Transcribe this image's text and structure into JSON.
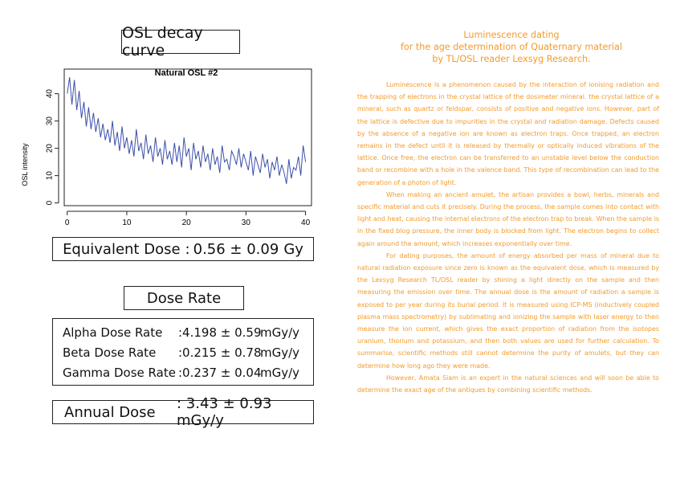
{
  "left": {
    "osl_title": "OSL decay curve",
    "equivalent_dose": {
      "label": "Equivalent Dose",
      "sep": ":",
      "value": "0.56 ± 0.09",
      "unit": "Gy"
    },
    "dose_rate_title": "Dose Rate",
    "dose_rates": [
      {
        "name": "Alpha Dose Rate",
        "value": ":4.198 ± 0.59",
        "unit": "mGy/y"
      },
      {
        "name": "Beta Dose Rate",
        "value": ":0.215 ± 0.78",
        "unit": "mGy/y"
      },
      {
        "name": "Gamma Dose Rate",
        "value": ":0.237 ± 0.04",
        "unit": "mGy/y"
      }
    ],
    "annual_dose": {
      "label": "Annual Dose",
      "value": ": 3.43 ± 0.93 mGy/y"
    }
  },
  "chart_data": {
    "type": "line",
    "title": "Natural OSL #2",
    "xlabel": "",
    "ylabel": "OSL intensity",
    "xlim": [
      -0.5,
      41
    ],
    "ylim": [
      -1,
      49
    ],
    "xticks": [
      0,
      10,
      20,
      30,
      40
    ],
    "yticks": [
      0,
      10,
      20,
      30,
      40
    ],
    "grid": false,
    "series": [
      {
        "color": "#3b4fa8",
        "x": [
          0,
          0.4,
          0.8,
          1.2,
          1.6,
          2,
          2.4,
          2.8,
          3.2,
          3.6,
          4,
          4.4,
          4.8,
          5.2,
          5.6,
          6,
          6.4,
          6.8,
          7.2,
          7.6,
          8,
          8.4,
          8.8,
          9.2,
          9.6,
          10,
          10.4,
          10.8,
          11.2,
          11.6,
          12,
          12.4,
          12.8,
          13.2,
          13.6,
          14,
          14.4,
          14.8,
          15.2,
          15.6,
          16,
          16.4,
          16.8,
          17.2,
          17.6,
          18,
          18.4,
          18.8,
          19.2,
          19.6,
          20,
          20.4,
          20.8,
          21.2,
          21.6,
          22,
          22.4,
          22.8,
          23.2,
          23.6,
          24,
          24.4,
          24.8,
          25.2,
          25.6,
          26,
          26.4,
          26.8,
          27.2,
          27.6,
          28,
          28.4,
          28.8,
          29.2,
          29.6,
          30,
          30.4,
          30.8,
          31.2,
          31.6,
          32,
          32.4,
          32.8,
          33.2,
          33.6,
          34,
          34.4,
          34.8,
          35.2,
          35.6,
          36,
          36.4,
          36.8,
          37.2,
          37.6,
          38,
          38.4,
          38.8,
          39.2,
          39.6,
          40
        ],
        "y": [
          40,
          46,
          36,
          45,
          34,
          41,
          31,
          37,
          28,
          35,
          27,
          33,
          26,
          31,
          24,
          29,
          23,
          27,
          22,
          30,
          21,
          26,
          19,
          28,
          20,
          24,
          18,
          23,
          17,
          27,
          19,
          22,
          16,
          25,
          18,
          21,
          15,
          24,
          17,
          20,
          14,
          23,
          16,
          19,
          14,
          22,
          15,
          21,
          13,
          24,
          17,
          20,
          12,
          22,
          16,
          19,
          13,
          21,
          15,
          18,
          12,
          20,
          14,
          17,
          11,
          21,
          15,
          16,
          12,
          19,
          17,
          14,
          20,
          13,
          18,
          15,
          12,
          19,
          10,
          17,
          14,
          11,
          18,
          13,
          16,
          9,
          15,
          12,
          17,
          10,
          14,
          11,
          7,
          16,
          9,
          13,
          12,
          17,
          10,
          21,
          15
        ]
      }
    ]
  },
  "right": {
    "title_lines": [
      "Luminescence dating",
      "for the age determination of Quaternary material",
      "by TL/OSL reader Lexsyg Research."
    ],
    "paragraphs": [
      "Luminescence is a phenomenon caused by the interaction of ionising radiation and the trapping of electrons in the crystal lattice of the dosimeter mineral. the crystal lattice of a mineral, such as quartz or feldspar, consists of positive and negative ions. However, part of the lattice is defective due to impurities in the crystal and radiation damage. Defects caused by the absence of a negative ion are known as electron traps. Once trapped, an electron remains in the defect until it is released by thermally or optically induced vibrations of the lattice. Once free, the electron can be transferred to an unstable level below the conduction band or recombine with a hole in the valence band. This type of recombination can lead to the generation of a photon of light.",
      "When making an ancient amulet, the artisan provides a bowl, herbs, minerals and specific material and cuts it precisely. During the process, the sample comes into contact with light and heat, causing the internal electrons of the electron trap to break. When the sample is in the fixed blog pressure, the inner body is blocked from light. The electron begins to collect again around the amount, which increases exponentially over time.",
      "For dating purposes, the amount of energy absorbed per mass of mineral due to natural radiation exposure since zero is known as the equivalent dose, which is measured by the Lexsyg Research TL/OSL reader by shining a light directly on the sample and then measuring the emission over time. The annual dose is the amount of radiation a sample is exposed to per year during its burial period. It is measured using ICP-MS (inductively coupled plasma mass spectrometry) by sublimating and ionizing the sample with laser energy to then measure the ion current, which gives the exact proportion of radiation from the isotopes uranium, thorium and potassium, and then both values are used for further calculation. To summarise, scientific methods still cannot determine the purity of amulets, but they can determine how long ago they were made.",
      "However, Amata Siam is an expert in the natural sciences and will soon be able to determine the exact age of the antiques by combining scientific methods."
    ]
  }
}
